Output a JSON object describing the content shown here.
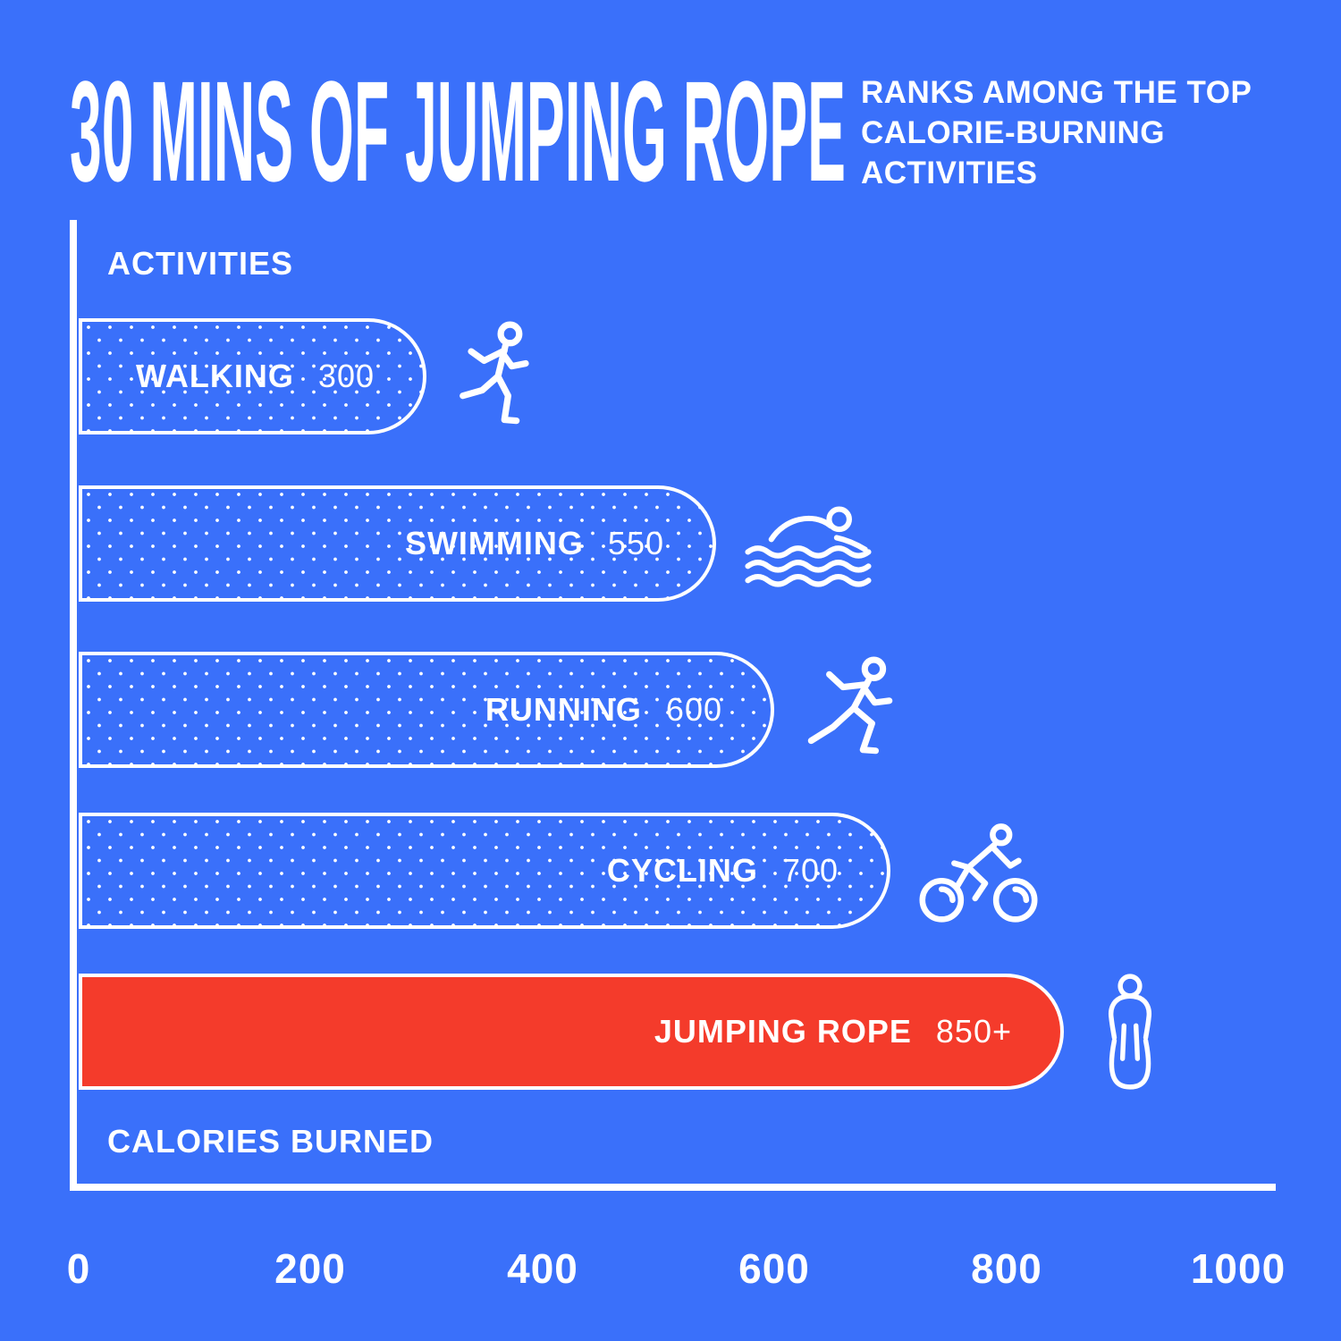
{
  "title": "30 MINS OF JUMPING ROPE",
  "subtitle": {
    "line1": "RANKS AMONG THE TOP",
    "line2": "CALORIE-BURNING",
    "line3": "ACTIVITIES"
  },
  "colors": {
    "background": "#3A70FA",
    "highlight_red": "#F43B2B",
    "bar_outline": "#FFFFFF",
    "text": "#FFFFFF"
  },
  "chart_data": {
    "type": "bar",
    "orientation": "horizontal",
    "title": "30 MINS OF JUMPING ROPE",
    "subtitle": "RANKS AMONG THE TOP CALORIE-BURNING ACTIVITIES",
    "ylabel": "ACTIVITIES",
    "xlabel": "CALORIES BURNED",
    "xlim": [
      0,
      1000
    ],
    "grid": false,
    "x_tick_values": [
      0,
      200,
      400,
      600,
      800,
      1000
    ],
    "x_ticks": [
      "0",
      "200",
      "400",
      "600",
      "800",
      "1000"
    ],
    "categories": [
      "WALKING",
      "SWIMMING",
      "RUNNING",
      "CYCLING",
      "JUMPING ROPE"
    ],
    "values": [
      300,
      550,
      600,
      700,
      850
    ],
    "bars": [
      {
        "name": "WALKING",
        "value": 300,
        "value_label": "300",
        "icon": "walking-icon",
        "highlighted": false
      },
      {
        "name": "SWIMMING",
        "value": 550,
        "value_label": "550",
        "icon": "swimming-icon",
        "highlighted": false
      },
      {
        "name": "RUNNING",
        "value": 600,
        "value_label": "600",
        "icon": "running-icon",
        "highlighted": false
      },
      {
        "name": "CYCLING",
        "value": 700,
        "value_label": "700",
        "icon": "cycling-icon",
        "highlighted": false
      },
      {
        "name": "JUMPING ROPE",
        "value": 850,
        "value_label": "850+",
        "icon": "jump-rope-icon",
        "highlighted": true
      }
    ]
  }
}
